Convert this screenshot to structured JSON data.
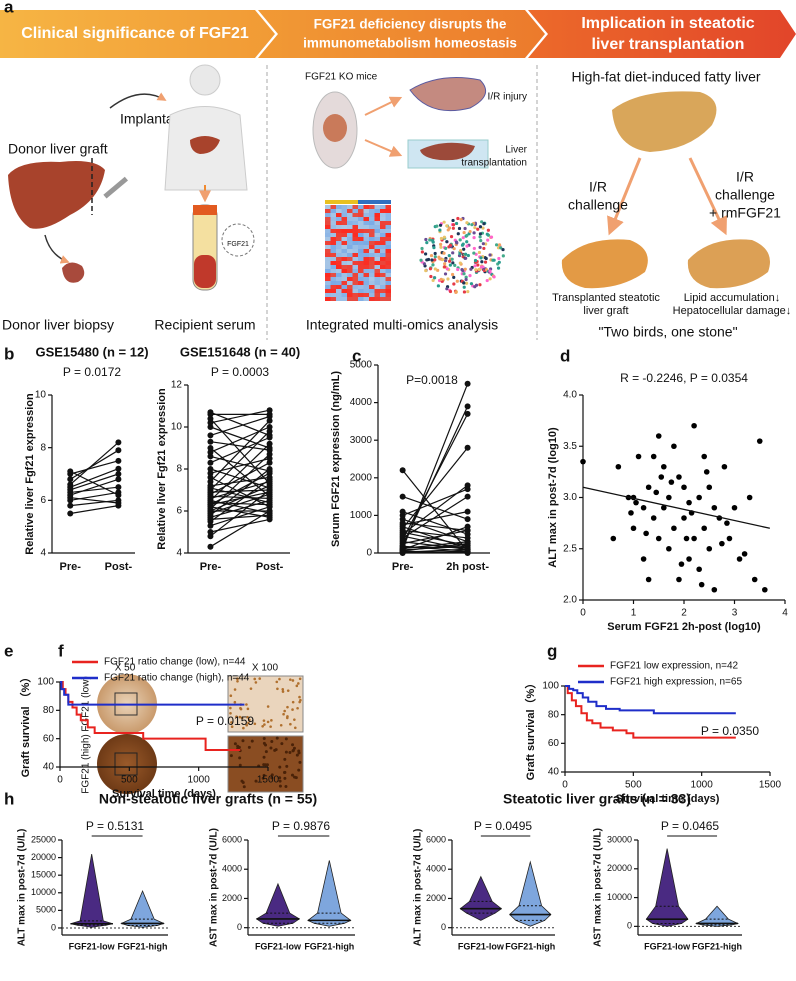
{
  "panel_labels": [
    "a",
    "b",
    "c",
    "d",
    "e",
    "f",
    "g",
    "h"
  ],
  "banner": [
    [
      "Clinical significance of FGF21"
    ],
    [
      "FGF21 deficiency disrupts the",
      "immunometabolism homeostasis"
    ],
    [
      "Implication in steatotic",
      "liver transplantation"
    ]
  ],
  "schematic": {
    "panel1": {
      "graft": "Donor liver graft",
      "implant": "Implantaion",
      "biopsy": "Donor liver biopsy",
      "serum": "Recipient serum",
      "badge": "FGF21"
    },
    "panel2": {
      "mice": "FGF21 KO mice",
      "ir": "I/R injury",
      "lt": [
        "Liver",
        "transplantation"
      ],
      "omics": "Integrated multi-omics analysis"
    },
    "panel3": {
      "hfd": "High-fat diet-induced fatty liver",
      "left": [
        "I/R",
        "challenge"
      ],
      "right": [
        "I/R",
        "challenge",
        "+ rmFGF21"
      ],
      "graft": [
        "Transplanted steatotic",
        "liver graft"
      ],
      "effect": [
        "Lipid accumulation↓",
        "Hepatocellular damage↓"
      ],
      "motto": "\"Two birds, one stone\""
    }
  },
  "ihc": {
    "mag": [
      "X 50",
      "X 100"
    ],
    "rows": [
      "FGF21 (low)",
      "FGF21 (high)"
    ]
  },
  "h_titles": [
    "Non-steatotic liver grafts (n = 55)",
    "Steatotic liver grafts (n = 33)"
  ],
  "chart_data": [
    {
      "type": "paired",
      "title": "GSE15480 (n = 12)",
      "annotation": "P = 0.0172",
      "ylabel": "Relative liver Fgf21 expression",
      "categories": [
        "Pre-",
        "Post-"
      ],
      "ylim": [
        4,
        10
      ],
      "yticks": [
        4,
        6,
        8,
        10
      ],
      "values": [
        [
          5.5,
          5.8
        ],
        [
          5.8,
          6.0
        ],
        [
          6.0,
          6.3
        ],
        [
          6.1,
          5.9
        ],
        [
          6.2,
          6.8
        ],
        [
          6.3,
          6.5
        ],
        [
          6.5,
          7.2
        ],
        [
          6.6,
          8.2
        ],
        [
          6.8,
          7.9
        ],
        [
          7.0,
          7.5
        ],
        [
          7.1,
          6.2
        ],
        [
          6.4,
          7.0
        ]
      ]
    },
    {
      "type": "paired",
      "title": "GSE151648 (n = 40)",
      "annotation": "P = 0.0003",
      "ylabel": "Relative liver Fgf21 expression",
      "categories": [
        "Pre-",
        "Post-"
      ],
      "ylim": [
        4,
        12
      ],
      "yticks": [
        4,
        6,
        8,
        10,
        12
      ],
      "values": [
        [
          4.3,
          6.0
        ],
        [
          4.8,
          7.0
        ],
        [
          5.0,
          5.6
        ],
        [
          5.3,
          6.2
        ],
        [
          5.5,
          7.5
        ],
        [
          5.6,
          5.8
        ],
        [
          5.7,
          6.5
        ],
        [
          5.8,
          8.0
        ],
        [
          5.9,
          6.8
        ],
        [
          6.0,
          7.2
        ],
        [
          6.0,
          6.0
        ],
        [
          6.1,
          8.7
        ],
        [
          6.2,
          5.7
        ],
        [
          6.3,
          6.9
        ],
        [
          6.3,
          7.8
        ],
        [
          6.4,
          6.3
        ],
        [
          6.5,
          9.2
        ],
        [
          6.5,
          5.9
        ],
        [
          6.6,
          7.4
        ],
        [
          6.7,
          6.6
        ],
        [
          6.8,
          8.3
        ],
        [
          6.9,
          7.0
        ],
        [
          7.0,
          9.8
        ],
        [
          7.1,
          6.4
        ],
        [
          7.2,
          7.6
        ],
        [
          7.4,
          10.3
        ],
        [
          7.6,
          6.2
        ],
        [
          7.8,
          8.5
        ],
        [
          8.0,
          7.1
        ],
        [
          8.3,
          9.5
        ],
        [
          8.6,
          7.9
        ],
        [
          8.8,
          10.0
        ],
        [
          9.0,
          6.7
        ],
        [
          9.3,
          8.9
        ],
        [
          9.6,
          10.5
        ],
        [
          10.0,
          9.0
        ],
        [
          10.2,
          10.8
        ],
        [
          10.4,
          7.3
        ],
        [
          10.6,
          10.6
        ],
        [
          10.7,
          9.6
        ]
      ]
    },
    {
      "type": "paired",
      "annotation": "P=0.0018",
      "ylabel": "Serum FGF21 expression (ng/mL)",
      "categories": [
        "Pre-",
        "2h post-"
      ],
      "ylim": [
        0,
        5000
      ],
      "yticks": [
        0,
        1000,
        2000,
        3000,
        4000,
        5000
      ],
      "values": [
        [
          0,
          50
        ],
        [
          20,
          100
        ],
        [
          50,
          0
        ],
        [
          80,
          200
        ],
        [
          100,
          4500
        ],
        [
          120,
          300
        ],
        [
          150,
          150
        ],
        [
          180,
          50
        ],
        [
          200,
          3900
        ],
        [
          250,
          600
        ],
        [
          300,
          100
        ],
        [
          350,
          3700
        ],
        [
          400,
          1500
        ],
        [
          450,
          80
        ],
        [
          500,
          1800
        ],
        [
          550,
          200
        ],
        [
          600,
          400
        ],
        [
          650,
          2800
        ],
        [
          700,
          120
        ],
        [
          750,
          1100
        ],
        [
          800,
          600
        ],
        [
          900,
          300
        ],
        [
          1000,
          1700
        ],
        [
          1100,
          500
        ],
        [
          1500,
          900
        ],
        [
          2200,
          50
        ],
        [
          30,
          10
        ],
        [
          60,
          250
        ],
        [
          90,
          700
        ],
        [
          10,
          30
        ]
      ]
    },
    {
      "type": "scatter",
      "annotation": "R = -0.2246, P = 0.0354",
      "xlabel": "Serum FGF21 2h-post (log10)",
      "ylabel": "ALT max in post-7d (log10)",
      "xlim": [
        0,
        4
      ],
      "xticks": [
        0,
        1,
        2,
        3,
        4
      ],
      "ylim": [
        2,
        4
      ],
      "yticks": [
        {
          "value": 2,
          "label": "2.0"
        },
        2.5,
        {
          "value": 3,
          "label": "3.0"
        },
        3.5,
        {
          "value": 4,
          "label": "4.0"
        }
      ],
      "color": "#000000",
      "x": [
        0,
        0.6,
        0.7,
        0.9,
        1.0,
        1.0,
        1.1,
        1.2,
        1.2,
        1.3,
        1.3,
        1.4,
        1.4,
        1.5,
        1.5,
        1.6,
        1.6,
        1.7,
        1.7,
        1.8,
        1.8,
        1.9,
        1.9,
        2.0,
        2.0,
        2.1,
        2.1,
        2.2,
        2.2,
        2.3,
        2.3,
        2.4,
        2.4,
        2.5,
        2.5,
        2.6,
        2.6,
        2.7,
        2.8,
        2.9,
        3.0,
        3.1,
        3.3,
        3.4,
        3.5,
        3.6,
        1.25,
        1.75,
        2.15,
        2.45,
        2.75,
        1.05,
        1.55,
        2.05,
        2.35,
        2.85,
        3.2,
        0.95,
        1.45,
        1.95
      ],
      "values": [
        3.35,
        2.6,
        3.3,
        3.0,
        3.0,
        2.7,
        3.4,
        2.9,
        2.4,
        3.1,
        2.2,
        3.4,
        2.8,
        3.6,
        2.6,
        3.3,
        2.9,
        3.0,
        2.5,
        3.5,
        2.7,
        3.2,
        2.2,
        3.1,
        2.8,
        2.95,
        2.4,
        3.7,
        2.6,
        3.0,
        2.3,
        3.4,
        2.7,
        3.1,
        2.5,
        2.9,
        2.1,
        2.8,
        3.3,
        2.6,
        2.9,
        2.4,
        3.0,
        2.2,
        3.55,
        2.1,
        2.65,
        3.15,
        2.85,
        3.25,
        2.55,
        2.95,
        3.2,
        2.6,
        2.15,
        2.75,
        2.45,
        2.85,
        3.05,
        2.35
      ],
      "fit_line": {
        "x": [
          0,
          3.7
        ],
        "values": [
          3.1,
          2.7
        ]
      }
    },
    {
      "type": "survival",
      "annotation": "P = 0.0159",
      "xlabel": "Survival time (days)",
      "ylabel": "Graft survival （%）",
      "xlim": [
        0,
        1500
      ],
      "xticks": [
        0,
        500,
        1000,
        1500
      ],
      "ylim": [
        40,
        100
      ],
      "yticks": [
        40,
        60,
        80,
        100
      ],
      "series": [
        {
          "name": "FGF21  ratio change (low), n=44",
          "color": "#e8231f",
          "x": [
            0,
            20,
            40,
            60,
            90,
            120,
            150,
            200,
            250,
            600,
            1050,
            1300
          ],
          "values": [
            100,
            95,
            91,
            86,
            82,
            77,
            73,
            68,
            64,
            60,
            52,
            52
          ]
        },
        {
          "name": "FGF21  ratio change (high), n=44",
          "color": "#1f2ec9",
          "x": [
            0,
            10,
            30,
            60,
            1330
          ],
          "values": [
            100,
            95,
            91,
            84,
            84
          ]
        }
      ]
    },
    {
      "type": "survival",
      "annotation": "P = 0.0350",
      "xlabel": "Survival time (days)",
      "ylabel": "Graft survival（%）",
      "xlim": [
        0,
        1500
      ],
      "xticks": [
        0,
        500,
        1000,
        1500
      ],
      "ylim": [
        40,
        100
      ],
      "yticks": [
        40,
        60,
        80,
        100
      ],
      "series": [
        {
          "name": "FGF21  low expression, n=42",
          "color": "#e8231f",
          "x": [
            0,
            20,
            50,
            80,
            120,
            160,
            200,
            260,
            350,
            450,
            500,
            1250
          ],
          "values": [
            100,
            95,
            90,
            86,
            81,
            76,
            74,
            71,
            69,
            67,
            64,
            64
          ]
        },
        {
          "name": "FGF21  high expression, n=65",
          "color": "#1f2ec9",
          "x": [
            0,
            30,
            60,
            90,
            130,
            170,
            230,
            300,
            400,
            650,
            1250
          ],
          "values": [
            100,
            98,
            97,
            95,
            92,
            89,
            86,
            84,
            83,
            81,
            81
          ]
        }
      ]
    },
    {
      "type": "violin",
      "annotation": "P = 0.5131",
      "ylabel": "ALT max in post-7d (U/L)",
      "categories": [
        "FGF21-low",
        "FGF21-high"
      ],
      "colors": [
        "#4a2a82",
        "#7ea6dd"
      ],
      "ylim": [
        -2000,
        25000
      ],
      "yticks": [
        0,
        5000,
        10000,
        15000,
        20000,
        25000
      ],
      "hline": 0,
      "stats": [
        [
          200,
          800,
          1200,
          2000,
          21000
        ],
        [
          200,
          700,
          1300,
          2500,
          10500
        ]
      ]
    },
    {
      "type": "violin",
      "annotation": "P = 0.9876",
      "ylabel": "AST max in post-7d (U/L)",
      "categories": [
        "FGF21-low",
        "FGF21-high"
      ],
      "colors": [
        "#4a2a82",
        "#7ea6dd"
      ],
      "ylim": [
        -500,
        6000
      ],
      "yticks": [
        0,
        2000,
        4000,
        6000
      ],
      "hline": 0,
      "stats": [
        [
          100,
          300,
          600,
          1000,
          3000
        ],
        [
          100,
          300,
          500,
          1000,
          4600
        ]
      ]
    },
    {
      "type": "violin",
      "annotation": "P = 0.0495",
      "ylabel": "ALT max in post-7d (U/L)",
      "categories": [
        "FGF21-low",
        "FGF21-high"
      ],
      "colors": [
        "#4a2a82",
        "#7ea6dd"
      ],
      "ylim": [
        -500,
        6000
      ],
      "yticks": [
        0,
        2000,
        4000,
        6000
      ],
      "hline": 0,
      "stats": [
        [
          500,
          1000,
          1300,
          1800,
          3500
        ],
        [
          100,
          500,
          900,
          1500,
          4500
        ]
      ]
    },
    {
      "type": "violin",
      "annotation": "P = 0.0465",
      "ylabel": "AST max in post-7d (U/L)",
      "categories": [
        "FGF21-low",
        "FGF21-high"
      ],
      "colors": [
        "#4a2a82",
        "#7ea6dd"
      ],
      "ylim": [
        -3000,
        30000
      ],
      "yticks": [
        0,
        10000,
        20000,
        30000
      ],
      "hline": 0,
      "stats": [
        [
          0,
          1000,
          2500,
          7000,
          27000
        ],
        [
          0,
          500,
          1000,
          2500,
          7000
        ]
      ]
    }
  ]
}
